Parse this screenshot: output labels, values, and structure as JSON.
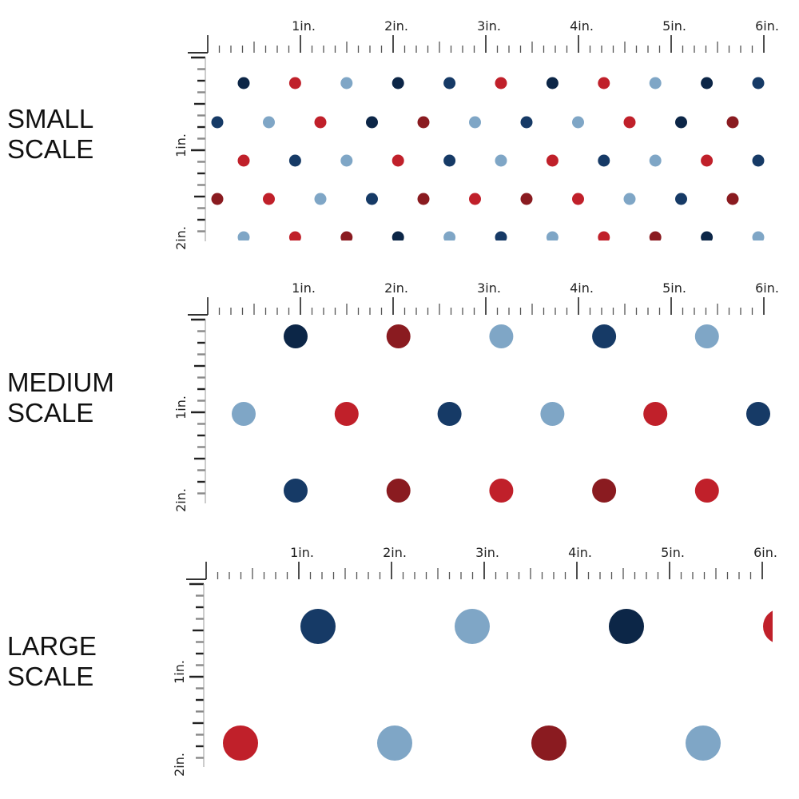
{
  "colors": {
    "N": "#0c2647",
    "B": "#163a66",
    "R": "#c0202a",
    "D": "#8a1b20",
    "L": "#7fa6c6"
  },
  "ruler": {
    "h_labels": [
      "1in.",
      "2in.",
      "3in.",
      "4in.",
      "5in.",
      "6in."
    ],
    "v_labels": [
      "1in.",
      "2in."
    ]
  },
  "panels": [
    {
      "id": "small",
      "title_line1": "SMALL",
      "title_line2": "SCALE",
      "rows": [
        [
          "N",
          "R",
          "L",
          "N",
          "B",
          "R",
          "N",
          "R",
          "L",
          "N",
          "B"
        ],
        [
          "B",
          "L",
          "R",
          "N",
          "D",
          "L",
          "B",
          "L",
          "R",
          "N",
          "D"
        ],
        [
          "R",
          "B",
          "L",
          "R",
          "B",
          "L",
          "R",
          "B",
          "L",
          "R",
          "B"
        ],
        [
          "D",
          "R",
          "L",
          "B",
          "D",
          "R",
          "D",
          "R",
          "L",
          "B",
          "D"
        ],
        [
          "L",
          "R",
          "D",
          "N",
          "L",
          "B",
          "L",
          "R",
          "D",
          "N",
          "L"
        ]
      ]
    },
    {
      "id": "medium",
      "title_line1": "MEDIUM",
      "title_line2": "SCALE",
      "rows": [
        [
          "N",
          "D",
          "L",
          "B",
          "L"
        ],
        [
          "L",
          "R",
          "B",
          "L",
          "R",
          "B"
        ],
        [
          "B",
          "D",
          "R",
          "D",
          "R"
        ]
      ]
    },
    {
      "id": "large",
      "title_line1": "LARGE",
      "title_line2": "SCALE",
      "rows": [
        [
          "B",
          "L",
          "N",
          "R"
        ],
        [
          "R",
          "L",
          "D",
          "L"
        ]
      ]
    }
  ]
}
